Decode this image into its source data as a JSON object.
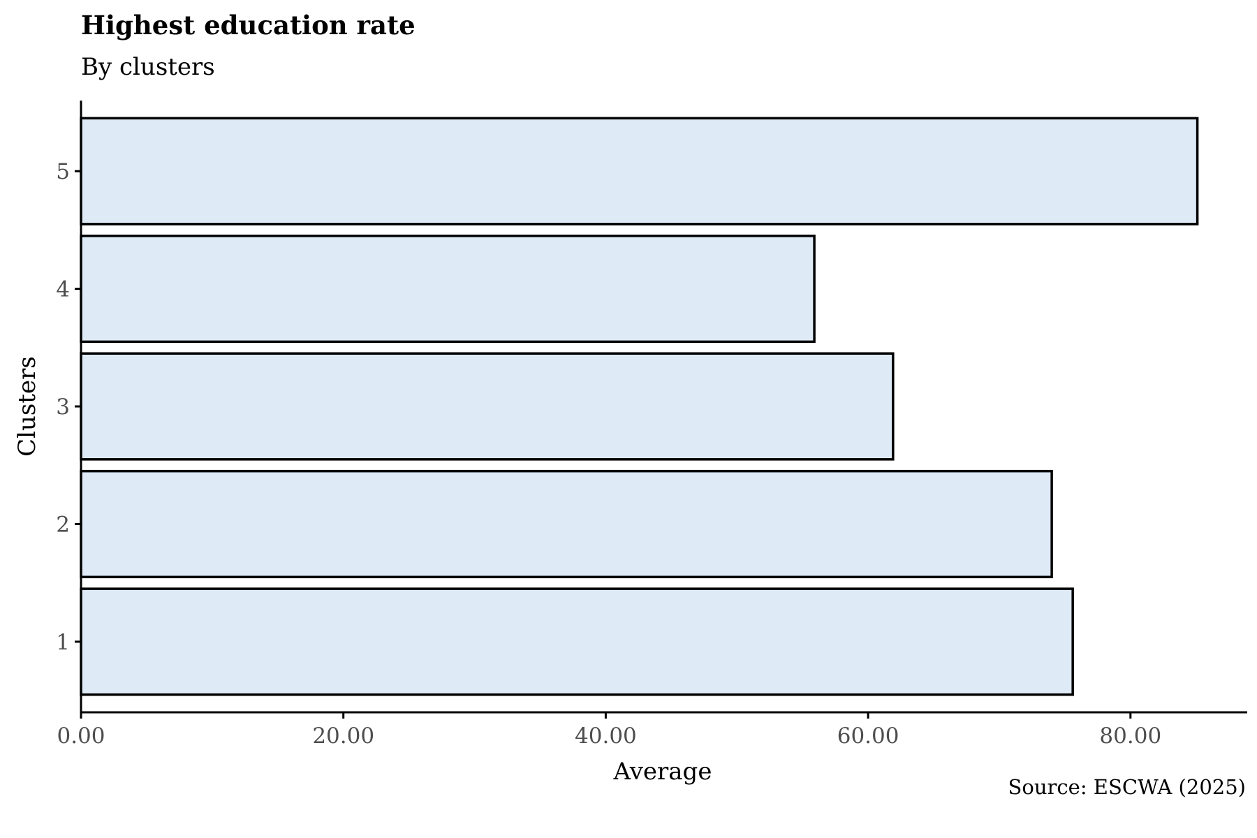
{
  "chart_data": {
    "type": "bar",
    "orientation": "horizontal",
    "title": "Highest education rate",
    "subtitle": "By clusters",
    "xlabel": "Average",
    "ylabel": "Clusters",
    "source": "Source: ESCWA (2025)",
    "categories": [
      "1",
      "2",
      "3",
      "4",
      "5"
    ],
    "values": [
      75.6,
      74.0,
      61.9,
      55.9,
      85.1
    ],
    "xlim": [
      0,
      88.9
    ],
    "xticks": [
      0,
      20,
      40,
      60,
      80
    ],
    "xtick_labels": [
      "0.00",
      "20.00",
      "40.00",
      "60.00",
      "80.00"
    ],
    "grid": false,
    "bar_fill": "#deeaf6",
    "bar_stroke": "#000000"
  }
}
